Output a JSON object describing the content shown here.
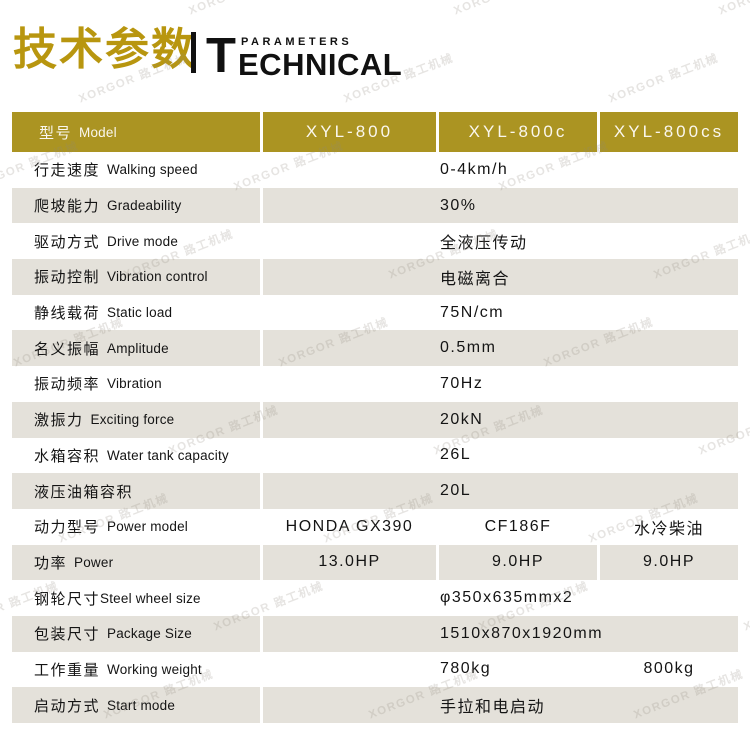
{
  "title": {
    "cn": "技术参数",
    "big_letter": "T",
    "word_small": "PARAMETERS",
    "word_rest": "ECHNICAL"
  },
  "watermark": {
    "text": "XORGOR 路工机械"
  },
  "colors": {
    "title_gold": "#B8960F",
    "header_bg": "#AB9422",
    "header_text": "#FAF7EE",
    "row_alt_bg": "#E4E1DA",
    "text": "#141414"
  },
  "table": {
    "header": {
      "label_cn": "型号",
      "label_en": "Model",
      "models": [
        "XYL-800",
        "XYL-800c",
        "XYL-800cs"
      ]
    },
    "rows": [
      {
        "cn": "行走速度",
        "en": "Walking speed",
        "type": "merged",
        "value": "0-4km/h"
      },
      {
        "cn": "爬坡能力",
        "en": "Gradeability",
        "type": "merged",
        "value": "30%"
      },
      {
        "cn": "驱动方式",
        "en": "Drive mode",
        "type": "merged",
        "value": "全液压传动"
      },
      {
        "cn": "振动控制",
        "en": "Vibration control",
        "type": "merged",
        "value": "电磁离合"
      },
      {
        "cn": "静线载荷",
        "en": "Static load",
        "type": "merged",
        "value": "75N/cm"
      },
      {
        "cn": "名义振幅",
        "en": "Amplitude",
        "type": "merged",
        "value": "0.5mm"
      },
      {
        "cn": "振动频率",
        "en": "Vibration",
        "type": "merged",
        "value": "70Hz"
      },
      {
        "cn": "激振力",
        "en": "Exciting force",
        "type": "merged",
        "value": "20kN"
      },
      {
        "cn": "水箱容积",
        "en": "Water tank capacity",
        "type": "merged",
        "value": "26L"
      },
      {
        "cn": "液压油箱容积",
        "en": "",
        "type": "merged",
        "value": "20L"
      },
      {
        "cn": "动力型号",
        "en": "Power model",
        "type": "three",
        "values": [
          "HONDA GX390",
          "CF186F",
          "水冷柴油"
        ]
      },
      {
        "cn": "功率",
        "en": "Power",
        "type": "three",
        "values": [
          "13.0HP",
          "9.0HP",
          "9.0HP"
        ]
      },
      {
        "cn": "钢轮尺寸",
        "en": "Steel wheel size",
        "no_space": true,
        "type": "merged",
        "value": "φ350x635mmx2"
      },
      {
        "cn": "包装尺寸",
        "en": "Package Size",
        "type": "merged",
        "value": "1510x870x1920mm"
      },
      {
        "cn": "工作重量",
        "en": "Working weight",
        "type": "two",
        "values": [
          "780kg",
          "800kg"
        ]
      },
      {
        "cn": "启动方式",
        "en": "Start mode",
        "type": "merged",
        "value": "手拉和电启动"
      }
    ]
  }
}
